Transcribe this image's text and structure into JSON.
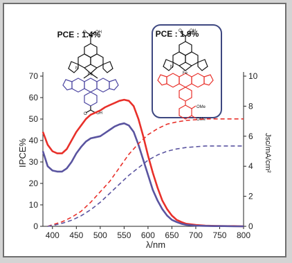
{
  "chart_data": {
    "type": "line",
    "xlabel": "λ/nm",
    "ylabel_left": "IPCE%",
    "ylabel_right": "Jsc/mA/cm²",
    "xlim": [
      380,
      800
    ],
    "ylim_left": [
      0,
      70
    ],
    "ylim_right": [
      0,
      10
    ],
    "x_ticks": [
      "400",
      "450",
      "500",
      "550",
      "600",
      "650",
      "700",
      "750",
      "800"
    ],
    "y_left_ticks": [
      "0",
      "10",
      "20",
      "30",
      "40",
      "50",
      "60",
      "70"
    ],
    "y_right_ticks": [
      "0",
      "2",
      "4",
      "6",
      "8",
      "10"
    ],
    "grid": false,
    "legend": "none",
    "series": [
      {
        "style": "solid",
        "axis": "left",
        "color": "#e8302a",
        "x": [
          380,
          390,
          400,
          410,
          420,
          430,
          440,
          450,
          460,
          470,
          480,
          490,
          500,
          510,
          520,
          530,
          540,
          550,
          560,
          570,
          580,
          590,
          600,
          610,
          620,
          630,
          640,
          650,
          660,
          670,
          680,
          700,
          720,
          740,
          760,
          780,
          800
        ],
        "y": [
          44,
          38,
          35,
          34,
          34,
          36,
          40,
          44,
          47,
          50,
          52,
          53,
          54,
          55.5,
          56.5,
          57.5,
          58.5,
          59,
          58.5,
          56,
          50,
          42,
          33,
          25,
          18,
          12,
          8,
          5,
          3,
          2,
          1.2,
          0.6,
          0.3,
          0.2,
          0.1,
          0.1,
          0
        ]
      },
      {
        "style": "solid",
        "axis": "left",
        "color": "#5a54a0",
        "x": [
          380,
          390,
          400,
          410,
          420,
          430,
          440,
          450,
          460,
          470,
          480,
          490,
          500,
          510,
          520,
          530,
          540,
          550,
          560,
          570,
          580,
          590,
          600,
          610,
          620,
          630,
          640,
          650,
          660,
          670,
          680,
          700,
          720,
          740,
          760,
          780,
          800
        ],
        "y": [
          35,
          28,
          26,
          25.5,
          25.5,
          27,
          30,
          34,
          37,
          39.5,
          41,
          41.5,
          42,
          43.5,
          45,
          46.5,
          47.5,
          48,
          47,
          44,
          38,
          31,
          24,
          17,
          12,
          8,
          5,
          3,
          2,
          1.2,
          0.7,
          0.3,
          0.2,
          0.1,
          0.1,
          0,
          0
        ]
      },
      {
        "style": "dashed",
        "axis": "right",
        "color": "#e8302a",
        "x": [
          390,
          400,
          420,
          440,
          460,
          480,
          500,
          520,
          540,
          560,
          580,
          600,
          620,
          640,
          660,
          680,
          700,
          720,
          740,
          760,
          780,
          800
        ],
        "y": [
          0,
          0.1,
          0.3,
          0.6,
          1.0,
          1.6,
          2.3,
          3.0,
          3.9,
          4.8,
          5.5,
          6.1,
          6.5,
          6.8,
          6.95,
          7.05,
          7.1,
          7.15,
          7.15,
          7.15,
          7.15,
          7.15
        ]
      },
      {
        "style": "dashed",
        "axis": "right",
        "color": "#5a54a0",
        "x": [
          390,
          400,
          420,
          440,
          460,
          480,
          500,
          520,
          540,
          560,
          580,
          600,
          620,
          640,
          660,
          680,
          700,
          720,
          740,
          760,
          780,
          800
        ],
        "y": [
          0,
          0.05,
          0.2,
          0.4,
          0.7,
          1.1,
          1.6,
          2.2,
          2.8,
          3.4,
          3.9,
          4.4,
          4.75,
          5.0,
          5.15,
          5.25,
          5.3,
          5.35,
          5.35,
          5.35,
          5.35,
          5.35
        ]
      }
    ],
    "annotations": [
      {
        "id": "pce1",
        "text": "PCE : 1.4%"
      },
      {
        "id": "pce2",
        "text": "PCE : 1.9%"
      }
    ],
    "molecule_labels": {
      "left": [
        "OH",
        "O",
        "Fe",
        "N",
        "OH",
        "O"
      ],
      "right": [
        "OH",
        "O",
        "Fe",
        "N",
        "OMe",
        "OMe"
      ]
    },
    "colors": {
      "red": "#e8302a",
      "blue": "#5a54a0",
      "frame": "#6e6e6e",
      "box": "#3d4780"
    }
  }
}
